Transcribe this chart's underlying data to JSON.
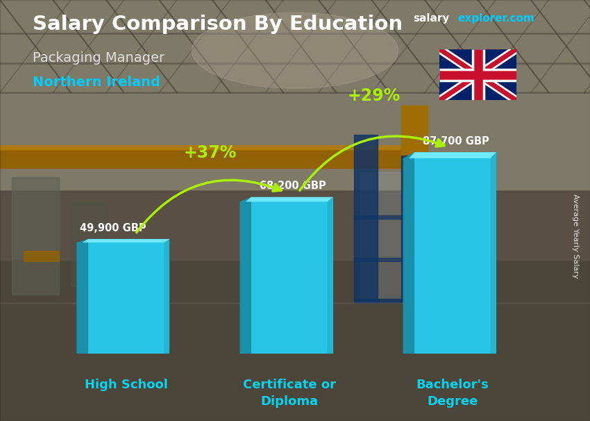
{
  "title_salary": "Salary Comparison By Education",
  "subtitle": "Packaging Manager",
  "location": "Northern Ireland",
  "categories": [
    "High School",
    "Certificate or\nDiploma",
    "Bachelor's\nDegree"
  ],
  "values": [
    49900,
    68200,
    87700
  ],
  "value_labels": [
    "49,900 GBP",
    "68,200 GBP",
    "87,700 GBP"
  ],
  "bar_main_color": "#29c5e6",
  "bar_light_color": "#5ee0f5",
  "bar_dark_color": "#1a90aa",
  "bar_top_color": "#7aeeff",
  "pct_labels": [
    "+37%",
    "+29%"
  ],
  "pct_color": "#aaee00",
  "arrow_color": "#55dd00",
  "title_color": "#ffffff",
  "subtitle_color": "#e0e0e0",
  "location_color": "#00ccff",
  "value_label_color": "#ffffff",
  "xlabel_color": "#00d4f0",
  "ylabel_text": "Average Yearly Salary",
  "bg_color": "#5a5040",
  "figsize": [
    8.5,
    6.06
  ],
  "dpi": 100,
  "bar_width": 0.5,
  "bar_depth": 0.07,
  "max_val": 110000,
  "x_positions": [
    0.5,
    1.5,
    2.5
  ]
}
